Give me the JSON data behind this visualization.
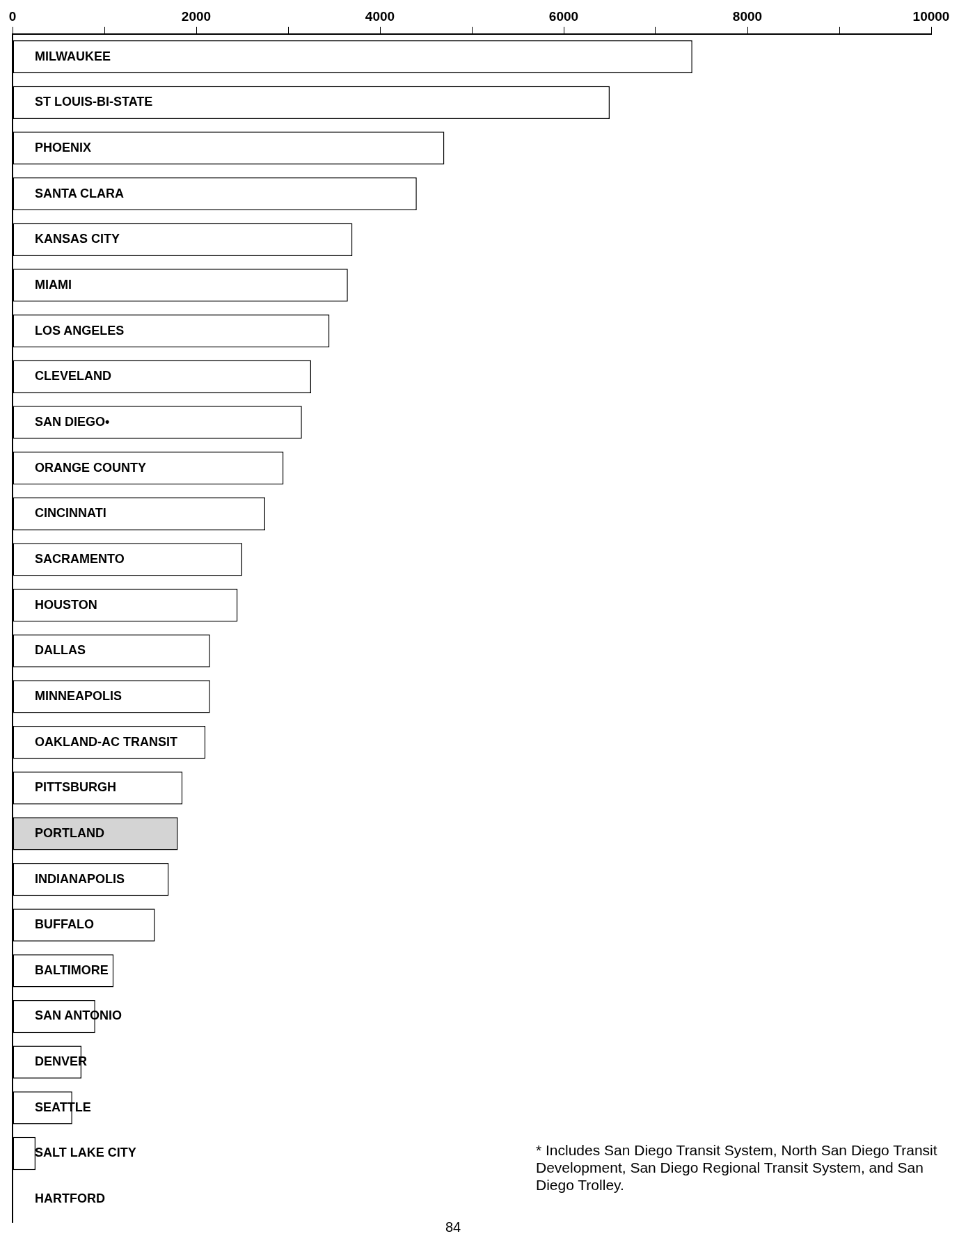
{
  "chart_data": {
    "type": "bar",
    "orientation": "horizontal",
    "categories": [
      "MILWAUKEE",
      "ST LOUIS-BI-STATE",
      "PHOENIX",
      "SANTA CLARA",
      "KANSAS CITY",
      "MIAMI",
      "LOS ANGELES",
      "CLEVELAND",
      "SAN DIEGO•",
      "ORANGE COUNTY",
      "CINCINNATI",
      "SACRAMENTO",
      "HOUSTON",
      "DALLAS",
      "MINNEAPOLIS",
      "OAKLAND-AC TRANSIT",
      "PITTSBURGH",
      "PORTLAND",
      "INDIANAPOLIS",
      "BUFFALO",
      "BALTIMORE",
      "SAN ANTONIO",
      "DENVER",
      "SEATTLE",
      "SALT LAKE CITY",
      "HARTFORD"
    ],
    "values": [
      7400,
      6500,
      4700,
      4400,
      3700,
      3650,
      3450,
      3250,
      3150,
      2950,
      2750,
      2500,
      2450,
      2150,
      2150,
      2100,
      1850,
      1800,
      1700,
      1550,
      1100,
      900,
      750,
      650,
      250,
      0
    ],
    "colors": [
      "#ffffff",
      "#ffffff",
      "#ffffff",
      "#ffffff",
      "#ffffff",
      "#ffffff",
      "#ffffff",
      "#ffffff",
      "#ffffff",
      "#ffffff",
      "#ffffff",
      "#ffffff",
      "#ffffff",
      "#ffffff",
      "#ffffff",
      "#ffffff",
      "#ffffff",
      "#d4d4d4",
      "#ffffff",
      "#ffffff",
      "#ffffff",
      "#ffffff",
      "#ffffff",
      "#ffffff",
      "#ffffff",
      "#ffffff"
    ],
    "xlim": [
      0,
      10000
    ],
    "xticks": [
      0,
      {
        "value": 1000,
        "label": null
      },
      2000,
      {
        "value": 3000,
        "label": null
      },
      4000,
      {
        "value": 5000,
        "label": null
      },
      6000,
      {
        "value": 7000,
        "label": null
      },
      8000,
      {
        "value": 9000,
        "label": null
      },
      10000
    ],
    "grid": false,
    "legend": false,
    "annotations": [
      "* Includes San Diego Transit System, North San Diego Transit Development, San Diego Regional Transit System, and San Diego Trolley.",
      "84"
    ]
  }
}
